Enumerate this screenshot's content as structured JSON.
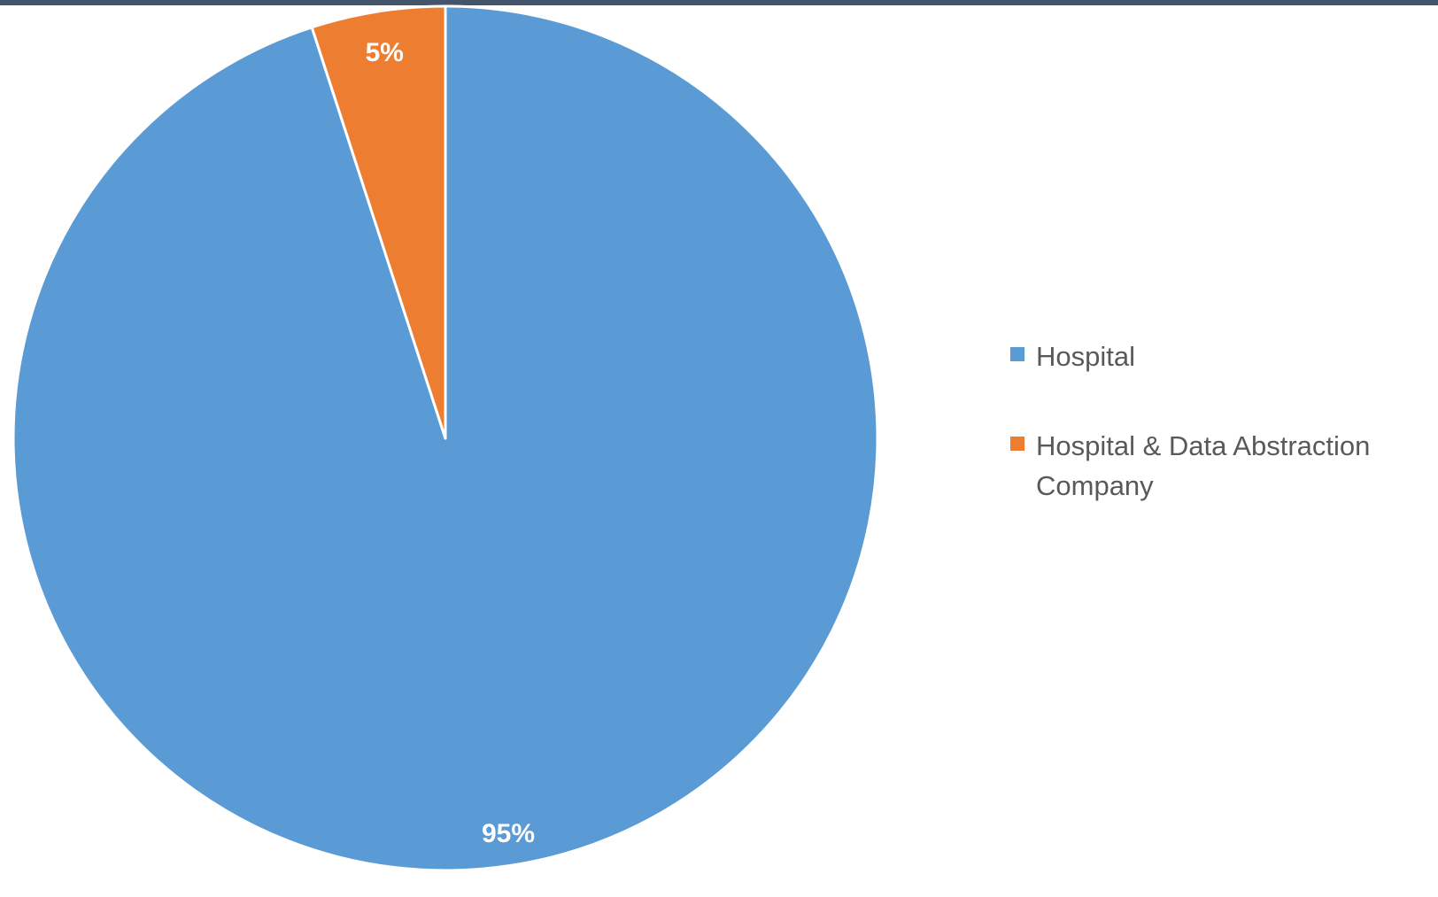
{
  "chart_data": {
    "type": "pie",
    "title": "",
    "start_angle_deg": 0,
    "direction": "clockwise",
    "slices": [
      {
        "name": "Hospital",
        "value": 95,
        "label": "95%",
        "color": "#5b9bd5"
      },
      {
        "name": "Hospital & Data Abstraction Company",
        "value": 5,
        "label": "5%",
        "color": "#ed7d31"
      }
    ],
    "legend_position": "right"
  },
  "theme": {
    "top_border_color": "#44546a",
    "slice_border_color": "#ffffff",
    "legend_text_color": "#595959"
  }
}
